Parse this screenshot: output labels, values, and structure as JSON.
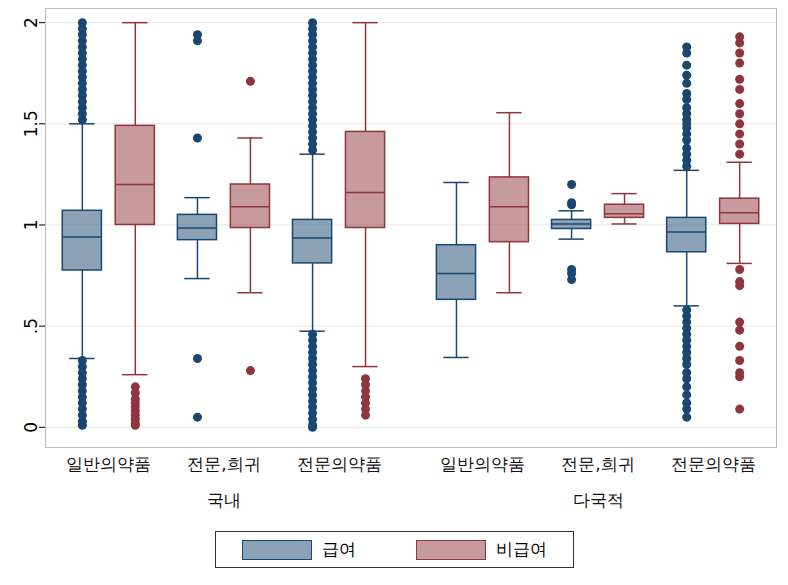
{
  "chart_data": {
    "type": "boxplot",
    "groups": [
      "국내",
      "다국적"
    ],
    "categories": [
      "일반의약품",
      "전문,희귀",
      "전문의약품"
    ],
    "ylim": [
      -0.1,
      2.07
    ],
    "yticks": [
      0,
      {
        "value": 0.5,
        "label": ".5"
      },
      1,
      1.5,
      2
    ],
    "grid": true,
    "legend": "bottom",
    "series": [
      {
        "name": "급여",
        "color": "#1a476f",
        "boxes": [
          {
            "low": 0.34,
            "q1": 0.775,
            "median": 0.94,
            "q3": 1.07,
            "high": 1.5,
            "outliers": [
              1.52,
              1.55,
              1.58,
              1.61,
              1.64,
              1.67,
              1.7,
              1.73,
              1.76,
              1.79,
              1.82,
              1.85,
              1.88,
              1.91,
              1.94,
              1.97,
              2.0,
              0.33,
              0.3,
              0.27,
              0.24,
              0.21,
              0.18,
              0.15,
              0.12,
              0.09,
              0.06,
              0.03,
              0.01
            ]
          },
          {
            "low": 0.735,
            "q1": 0.925,
            "median": 0.985,
            "q3": 1.05,
            "high": 1.135,
            "outliers": [
              1.94,
              1.91,
              1.43,
              0.34,
              0.05
            ]
          },
          {
            "low": 0.475,
            "q1": 0.81,
            "median": 0.935,
            "q3": 1.025,
            "high": 1.35,
            "outliers": [
              1.37,
              1.4,
              1.43,
              1.46,
              1.49,
              1.52,
              1.55,
              1.58,
              1.61,
              1.64,
              1.67,
              1.7,
              1.73,
              1.76,
              1.79,
              1.82,
              1.85,
              1.88,
              1.91,
              1.94,
              1.97,
              2.0,
              0.46,
              0.43,
              0.4,
              0.37,
              0.34,
              0.31,
              0.28,
              0.25,
              0.22,
              0.19,
              0.16,
              0.13,
              0.1,
              0.07,
              0.04,
              0.01,
              0.0
            ]
          },
          {
            "low": 0.345,
            "q1": 0.63,
            "median": 0.76,
            "q3": 0.9,
            "high": 1.21,
            "outliers": []
          },
          {
            "low": 0.93,
            "q1": 0.98,
            "median": 1.005,
            "q3": 1.025,
            "high": 1.07,
            "outliers": [
              1.2,
              1.11,
              1.1,
              0.78,
              0.76,
              0.73
            ]
          },
          {
            "low": 0.6,
            "q1": 0.865,
            "median": 0.965,
            "q3": 1.035,
            "high": 1.27,
            "outliers": [
              1.29,
              1.32,
              1.35,
              1.38,
              1.42,
              1.45,
              1.48,
              1.5,
              1.52,
              1.55,
              1.58,
              1.62,
              1.65,
              1.7,
              1.74,
              1.79,
              1.85,
              1.88,
              0.58,
              0.55,
              0.52,
              0.49,
              0.46,
              0.43,
              0.4,
              0.37,
              0.34,
              0.31,
              0.27,
              0.24,
              0.2,
              0.16,
              0.12,
              0.09,
              0.05
            ]
          }
        ]
      },
      {
        "name": "비급여",
        "color": "#90353b",
        "boxes": [
          {
            "low": 0.26,
            "q1": 1.0,
            "median": 1.2,
            "q3": 1.49,
            "high": 2.0,
            "outliers": [
              0.2,
              0.17,
              0.14,
              0.12,
              0.1,
              0.08,
              0.06,
              0.04,
              0.02,
              0.01
            ]
          },
          {
            "low": 0.665,
            "q1": 0.985,
            "median": 1.09,
            "q3": 1.2,
            "high": 1.43,
            "outliers": [
              1.71,
              0.28
            ]
          },
          {
            "low": 0.3,
            "q1": 0.985,
            "median": 1.16,
            "q3": 1.46,
            "high": 2.0,
            "outliers": [
              0.24,
              0.21,
              0.18,
              0.15,
              0.12,
              0.09,
              0.06
            ]
          },
          {
            "low": 0.665,
            "q1": 0.915,
            "median": 1.09,
            "q3": 1.235,
            "high": 1.555,
            "outliers": []
          },
          {
            "low": 1.005,
            "q1": 1.035,
            "median": 1.055,
            "q3": 1.1,
            "high": 1.155,
            "outliers": []
          },
          {
            "low": 0.81,
            "q1": 1.005,
            "median": 1.06,
            "q3": 1.13,
            "high": 1.31,
            "outliers": [
              1.93,
              1.9,
              1.85,
              1.8,
              1.72,
              1.67,
              1.6,
              1.55,
              1.5,
              1.45,
              1.4,
              1.35,
              0.78,
              0.72,
              0.7,
              0.52,
              0.48,
              0.4,
              0.33,
              0.27,
              0.25,
              0.09
            ]
          }
        ]
      }
    ]
  }
}
